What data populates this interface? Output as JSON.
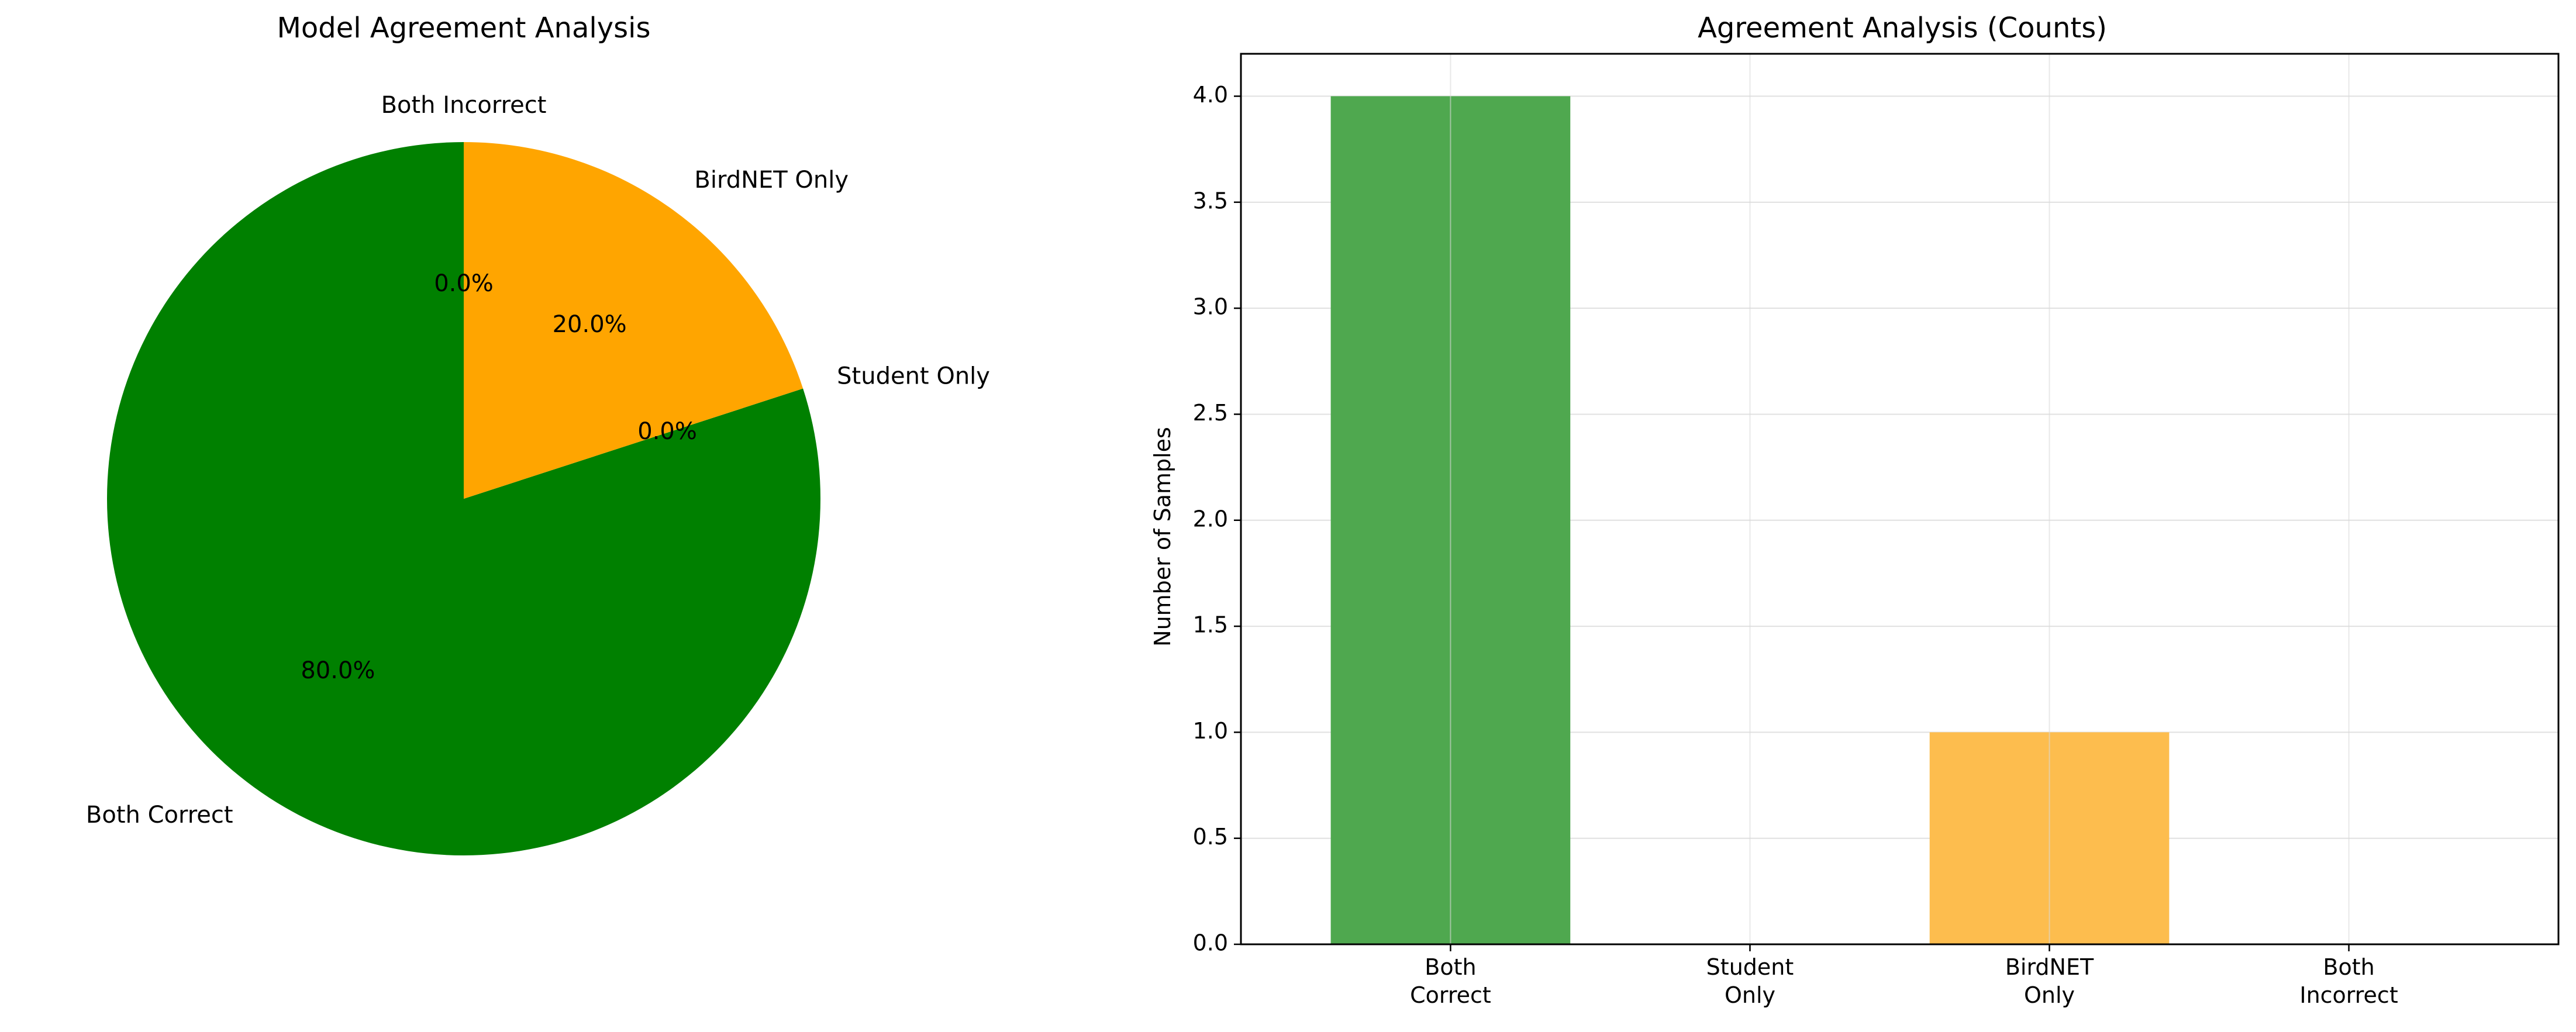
{
  "chart_data": [
    {
      "type": "pie",
      "title": "Model Agreement Analysis",
      "categories": [
        "Both Correct",
        "Student Only",
        "BirdNET Only",
        "Both Incorrect"
      ],
      "values": [
        4,
        0,
        1,
        0
      ],
      "percent_labels": [
        "80.0%",
        "0.0%",
        "20.0%",
        "0.0%"
      ],
      "colors": [
        "#008000",
        "#0000ff",
        "#ffa500",
        "#ff0000"
      ],
      "start_angle_deg": 90,
      "direction": "counterclockwise"
    },
    {
      "type": "bar",
      "title": "Agreement Analysis (Counts)",
      "categories": [
        "Both Correct",
        "Student Only",
        "BirdNET Only",
        "Both Incorrect"
      ],
      "tick_labels": [
        [
          "Both",
          "Correct"
        ],
        [
          "Student",
          "Only"
        ],
        [
          "BirdNET",
          "Only"
        ],
        [
          "Both",
          "Incorrect"
        ]
      ],
      "values": [
        4,
        0,
        1,
        0
      ],
      "colors": [
        "#4fa84f",
        "#5a5aff",
        "#fdbd4e",
        "#ff5a5a"
      ],
      "xlabel": "",
      "ylabel": "Number of Samples",
      "ylim": [
        0,
        4.2
      ],
      "yticks": [
        "0.0",
        "0.5",
        "1.0",
        "1.5",
        "2.0",
        "2.5",
        "3.0",
        "3.5",
        "4.0"
      ],
      "grid": true
    }
  ]
}
